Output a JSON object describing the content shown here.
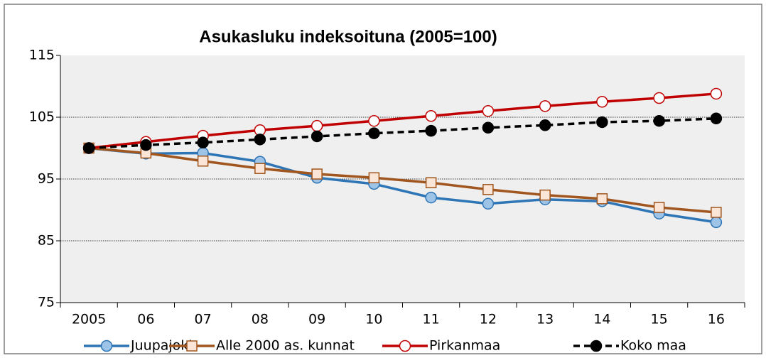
{
  "chart_data": {
    "type": "line",
    "title": "Asukasluku indeksoituna (2005=100)",
    "categories": [
      "2005",
      "06",
      "07",
      "08",
      "09",
      "10",
      "11",
      "12",
      "13",
      "14",
      "15",
      "16"
    ],
    "ylim": [
      75,
      115
    ],
    "yticks": [
      75,
      85,
      95,
      105,
      115
    ],
    "grid": true,
    "legend": "bottom",
    "series": [
      {
        "name": "Juupajoki",
        "color": "#2e75b6",
        "marker": "circle",
        "marker_fill": "#9dc3e6",
        "dash": false,
        "values": [
          100,
          99.1,
          99.2,
          97.8,
          95.2,
          94.2,
          92.0,
          91.0,
          91.7,
          91.4,
          89.4,
          88.0
        ]
      },
      {
        "name": "Alle 2000 as. kunnat",
        "color": "#a0561e",
        "marker": "square",
        "marker_fill": "#fbe5d6",
        "dash": false,
        "values": [
          100,
          99.2,
          97.9,
          96.7,
          95.8,
          95.2,
          94.4,
          93.3,
          92.4,
          91.8,
          90.4,
          89.6
        ]
      },
      {
        "name": "Pirkanmaa",
        "color": "#c00000",
        "marker": "circle",
        "marker_fill": "#ffffff",
        "dash": false,
        "values": [
          100,
          101.0,
          102.0,
          102.9,
          103.6,
          104.4,
          105.2,
          106.0,
          106.8,
          107.5,
          108.1,
          108.8
        ]
      },
      {
        "name": "Koko maa",
        "color": "#000000",
        "marker": "circle",
        "marker_fill": "#000000",
        "dash": true,
        "values": [
          100,
          100.5,
          100.9,
          101.4,
          101.9,
          102.4,
          102.8,
          103.3,
          103.7,
          104.2,
          104.4,
          104.8
        ]
      }
    ]
  }
}
